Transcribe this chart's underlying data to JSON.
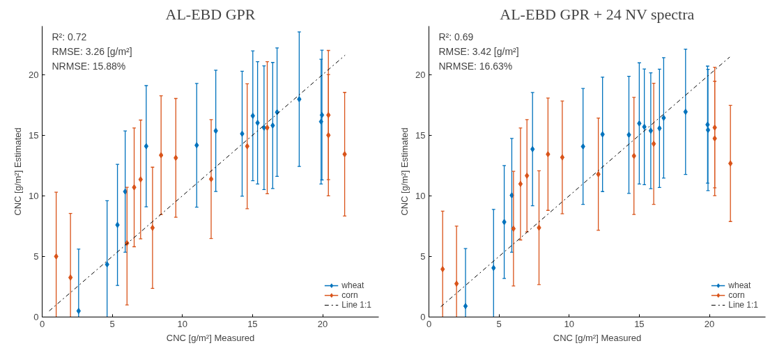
{
  "chart_data": [
    {
      "type": "scatter",
      "title": "AL-EBD GPR",
      "xlabel": "CNC [g/m²] Measured",
      "ylabel": "CNC [g/m²] Estimated",
      "annotations": [
        "R²: 0.72",
        "RMSE: 3.26 [g/m²]",
        "NRMSE: 15.88%"
      ],
      "xlim": [
        0,
        24
      ],
      "ylim": [
        0,
        24
      ],
      "xticks": [
        0,
        5,
        10,
        15,
        20
      ],
      "yticks": [
        0,
        5,
        10,
        15,
        20
      ],
      "grid": false,
      "legend": "bottom right",
      "series": [
        {
          "name": "wheat",
          "color": "#0072bd",
          "marker": "diamond",
          "x": [
            2.6,
            4.63,
            5.37,
            5.92,
            7.42,
            11.02,
            12.38,
            14.26,
            15.02,
            15.36,
            15.82,
            16.44,
            16.75,
            18.33,
            19.89,
            19.95
          ],
          "values": [
            0.5,
            4.34,
            7.6,
            10.35,
            14.09,
            14.17,
            15.36,
            15.12,
            16.6,
            16.02,
            15.62,
            15.8,
            16.9,
            17.97,
            16.12,
            16.66
          ],
          "errors": [
            [
              0,
              5.6
            ],
            [
              0,
              9.6
            ],
            5.0,
            5.0,
            5.0,
            5.1,
            5.0,
            5.15,
            5.35,
            5.05,
            5.1,
            5.2,
            5.3,
            5.55,
            5.15,
            5.35
          ]
        },
        {
          "name": "corn",
          "color": "#d95319",
          "marker": "diamond",
          "x": [
            1.0,
            2.02,
            6.05,
            6.56,
            7.02,
            7.87,
            8.48,
            9.53,
            12.05,
            14.62,
            16.05,
            20.41,
            20.41,
            21.57
          ],
          "values": [
            5.0,
            3.26,
            6.1,
            10.7,
            11.35,
            7.36,
            13.35,
            13.13,
            11.38,
            14.09,
            15.62,
            16.66,
            15.0,
            13.43
          ],
          "errors": [
            [
              0,
              10.3
            ],
            [
              0,
              8.55
            ],
            [
              1.0,
              10.7
            ],
            4.9,
            4.9,
            5.0,
            4.9,
            4.9,
            4.9,
            5.15,
            5.45,
            5.33,
            5.0,
            5.1
          ]
        },
        {
          "name": "Line 1:1",
          "type": "line",
          "color": "#000000",
          "line_style": "dashdot",
          "x": [
            0.5,
            21.6
          ],
          "values": [
            0.5,
            21.6
          ]
        }
      ]
    },
    {
      "type": "scatter",
      "title": "AL-EBD GPR + 24 NV spectra",
      "xlabel": "CNC [g/m²] Measured",
      "ylabel": "CNC [g/m²] Estimated",
      "annotations": [
        "R²: 0.69",
        "RMSE: 3.42 [g/m²]",
        "NRMSE: 16.63%"
      ],
      "xlim": [
        0,
        24
      ],
      "ylim": [
        0,
        24
      ],
      "xticks": [
        0,
        5,
        10,
        15,
        20
      ],
      "yticks": [
        0,
        5,
        10,
        15,
        20
      ],
      "grid": false,
      "legend": "bottom right",
      "series": [
        {
          "name": "wheat",
          "color": "#0072bd",
          "marker": "diamond",
          "x": [
            2.61,
            4.61,
            5.37,
            5.91,
            7.39,
            10.99,
            12.38,
            14.26,
            15.0,
            15.36,
            15.82,
            16.44,
            16.74,
            18.3,
            19.87,
            19.9
          ],
          "values": [
            0.9,
            4.05,
            7.84,
            10.04,
            13.85,
            14.07,
            15.07,
            15.03,
            15.97,
            15.69,
            15.37,
            15.57,
            16.43,
            16.93,
            15.87,
            15.43
          ],
          "errors": [
            [
              0,
              5.65
            ],
            [
              0,
              8.88
            ],
            4.66,
            4.69,
            4.67,
            4.78,
            4.72,
            4.83,
            5.0,
            4.77,
            4.78,
            4.88,
            4.97,
            5.17,
            4.83,
            5.0
          ]
        },
        {
          "name": "corn",
          "color": "#d95319",
          "marker": "diamond",
          "x": [
            0.98,
            1.97,
            6.03,
            6.53,
            6.99,
            7.85,
            8.49,
            9.51,
            12.08,
            14.62,
            16.03,
            20.38,
            20.38,
            21.5
          ],
          "values": [
            3.95,
            2.75,
            7.29,
            10.98,
            11.66,
            7.37,
            13.43,
            13.17,
            11.78,
            13.29,
            14.29,
            15.63,
            14.73,
            12.67
          ],
          "errors": [
            [
              0,
              8.74
            ],
            [
              0,
              7.5
            ],
            4.73,
            4.62,
            4.63,
            4.69,
            4.63,
            4.65,
            4.63,
            4.83,
            5.0,
            4.97,
            4.72,
            4.79
          ]
        },
        {
          "name": "Line 1:1",
          "type": "line",
          "color": "#000000",
          "line_style": "dashdot",
          "x": [
            0.85,
            21.45
          ],
          "values": [
            0.85,
            21.45
          ]
        }
      ]
    }
  ]
}
